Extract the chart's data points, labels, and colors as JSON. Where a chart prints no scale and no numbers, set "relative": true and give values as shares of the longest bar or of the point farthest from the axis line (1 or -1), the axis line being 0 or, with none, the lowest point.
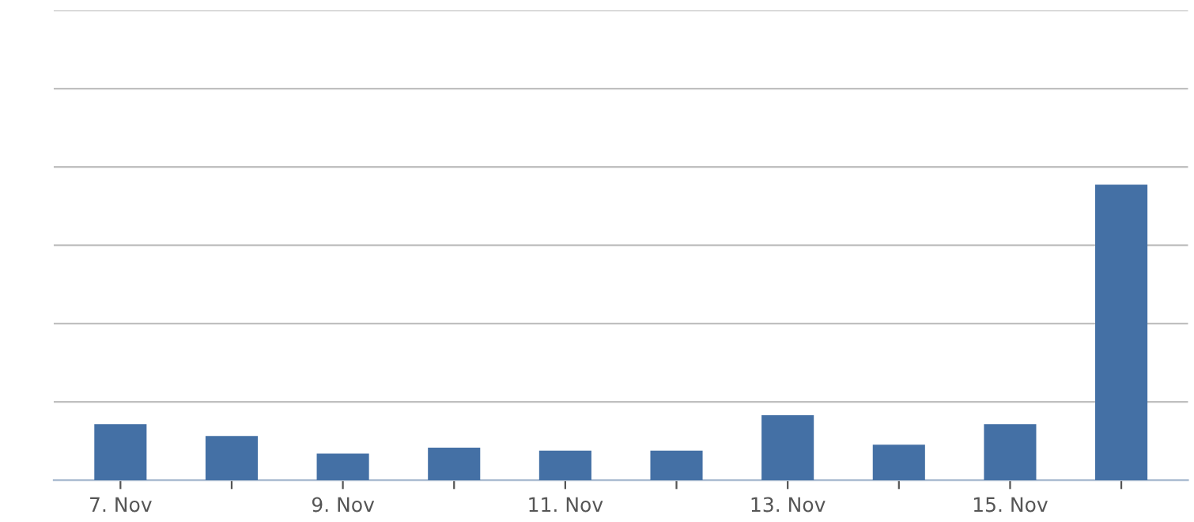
{
  "chart_data": {
    "type": "bar",
    "relative": true,
    "categories": [
      "7. Nov",
      null,
      "9. Nov",
      null,
      "11. Nov",
      null,
      "13. Nov",
      null,
      "15. Nov",
      null
    ],
    "values": [
      0.19,
      0.15,
      0.09,
      0.11,
      0.1,
      0.1,
      0.22,
      0.12,
      0.19,
      1
    ],
    "color": "#4470a5",
    "grid": true,
    "legend": false
  }
}
